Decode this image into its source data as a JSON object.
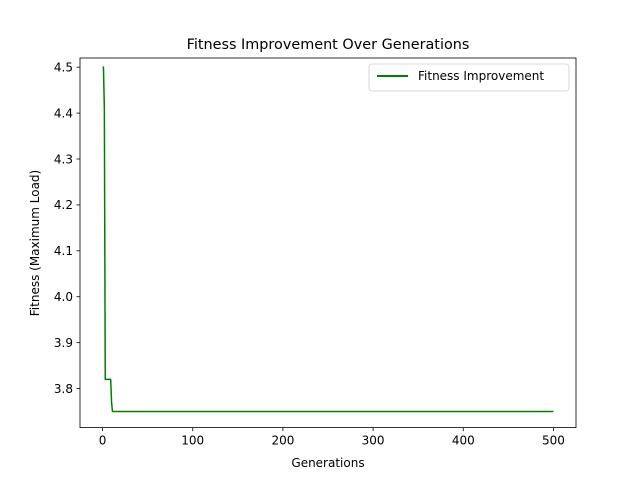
{
  "chart_data": {
    "type": "line",
    "title": "Fitness Improvement Over Generations",
    "xlabel": "Generations",
    "ylabel": "Fitness (Maximum Load)",
    "xlim": [
      -25,
      525
    ],
    "ylim": [
      3.715,
      4.52
    ],
    "xticks": [
      0,
      100,
      200,
      300,
      400,
      500
    ],
    "yticks": [
      3.8,
      3.9,
      4.0,
      4.1,
      4.2,
      4.3,
      4.4,
      4.5
    ],
    "xtick_labels": [
      "0",
      "100",
      "200",
      "300",
      "400",
      "500"
    ],
    "ytick_labels": [
      "3.8",
      "3.9",
      "4.0",
      "4.1",
      "4.2",
      "4.3",
      "4.4",
      "4.5"
    ],
    "grid": false,
    "legend_position": "top-right",
    "series": [
      {
        "name": "Fitness Improvement",
        "color": "#008000",
        "x": [
          0,
          1,
          2,
          3,
          7,
          8,
          9,
          10,
          11,
          12,
          50,
          100,
          200,
          300,
          400,
          500
        ],
        "y": [
          4.5,
          4.5,
          4.41,
          3.82,
          3.82,
          3.82,
          3.82,
          3.77,
          3.75,
          3.75,
          3.75,
          3.75,
          3.75,
          3.75,
          3.75,
          3.75
        ]
      }
    ]
  }
}
